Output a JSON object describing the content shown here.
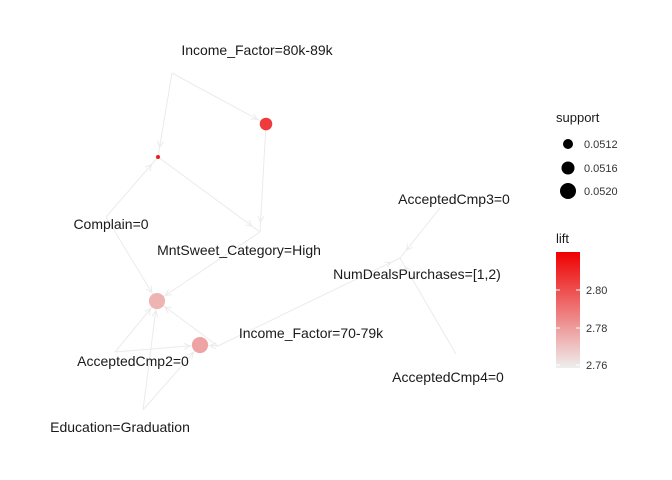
{
  "graph": {
    "item_nodes": [
      {
        "id": "income80",
        "label": "Income_Factor=80k-89k"
      },
      {
        "id": "complain",
        "label": "Complain=0"
      },
      {
        "id": "mntsweet",
        "label": "MntSweet_Category=High"
      },
      {
        "id": "acc3",
        "label": "AcceptedCmp3=0"
      },
      {
        "id": "numdeals",
        "label": "NumDealsPurchases=[1,2)"
      },
      {
        "id": "income70",
        "label": "Income_Factor=70-79k"
      },
      {
        "id": "acc2",
        "label": "AcceptedCmp2=0"
      },
      {
        "id": "acc4",
        "label": "AcceptedCmp4=0"
      },
      {
        "id": "edu",
        "label": "Education=Graduation"
      }
    ],
    "rule_nodes": [
      {
        "id": "r1",
        "support": 0.0515,
        "lift": 2.815
      },
      {
        "id": "r2",
        "support": 0.0508,
        "lift": 2.825
      },
      {
        "id": "r3",
        "support": 0.0519,
        "lift": 2.775
      },
      {
        "id": "r4",
        "support": 0.0519,
        "lift": 2.78
      }
    ],
    "edges": [
      [
        "income80",
        "r1"
      ],
      [
        "income80",
        "r2"
      ],
      [
        "complain",
        "r2"
      ],
      [
        "r1",
        "mntsweet"
      ],
      [
        "r2",
        "mntsweet"
      ],
      [
        "acc3",
        "numdeals"
      ],
      [
        "acc4",
        "numdeals"
      ],
      [
        "income70",
        "numdeals"
      ],
      [
        "mntsweet",
        "r3"
      ],
      [
        "complain",
        "r3"
      ],
      [
        "acc2",
        "r3"
      ],
      [
        "edu",
        "r3"
      ],
      [
        "income70",
        "r3"
      ],
      [
        "edu",
        "r4"
      ],
      [
        "acc2",
        "r4"
      ],
      [
        "income70",
        "r4"
      ]
    ]
  },
  "legend": {
    "support": {
      "title": "support",
      "entries": [
        "0.0512",
        "0.0516",
        "0.0520"
      ]
    },
    "lift": {
      "title": "lift",
      "ticks": [
        "2.80",
        "2.78",
        "2.76"
      ],
      "colors": {
        "low": "#eeeeee",
        "high": "#ee0000"
      }
    }
  },
  "colors": {
    "edge": "#ebebeb",
    "text": "#1a1a1a"
  }
}
